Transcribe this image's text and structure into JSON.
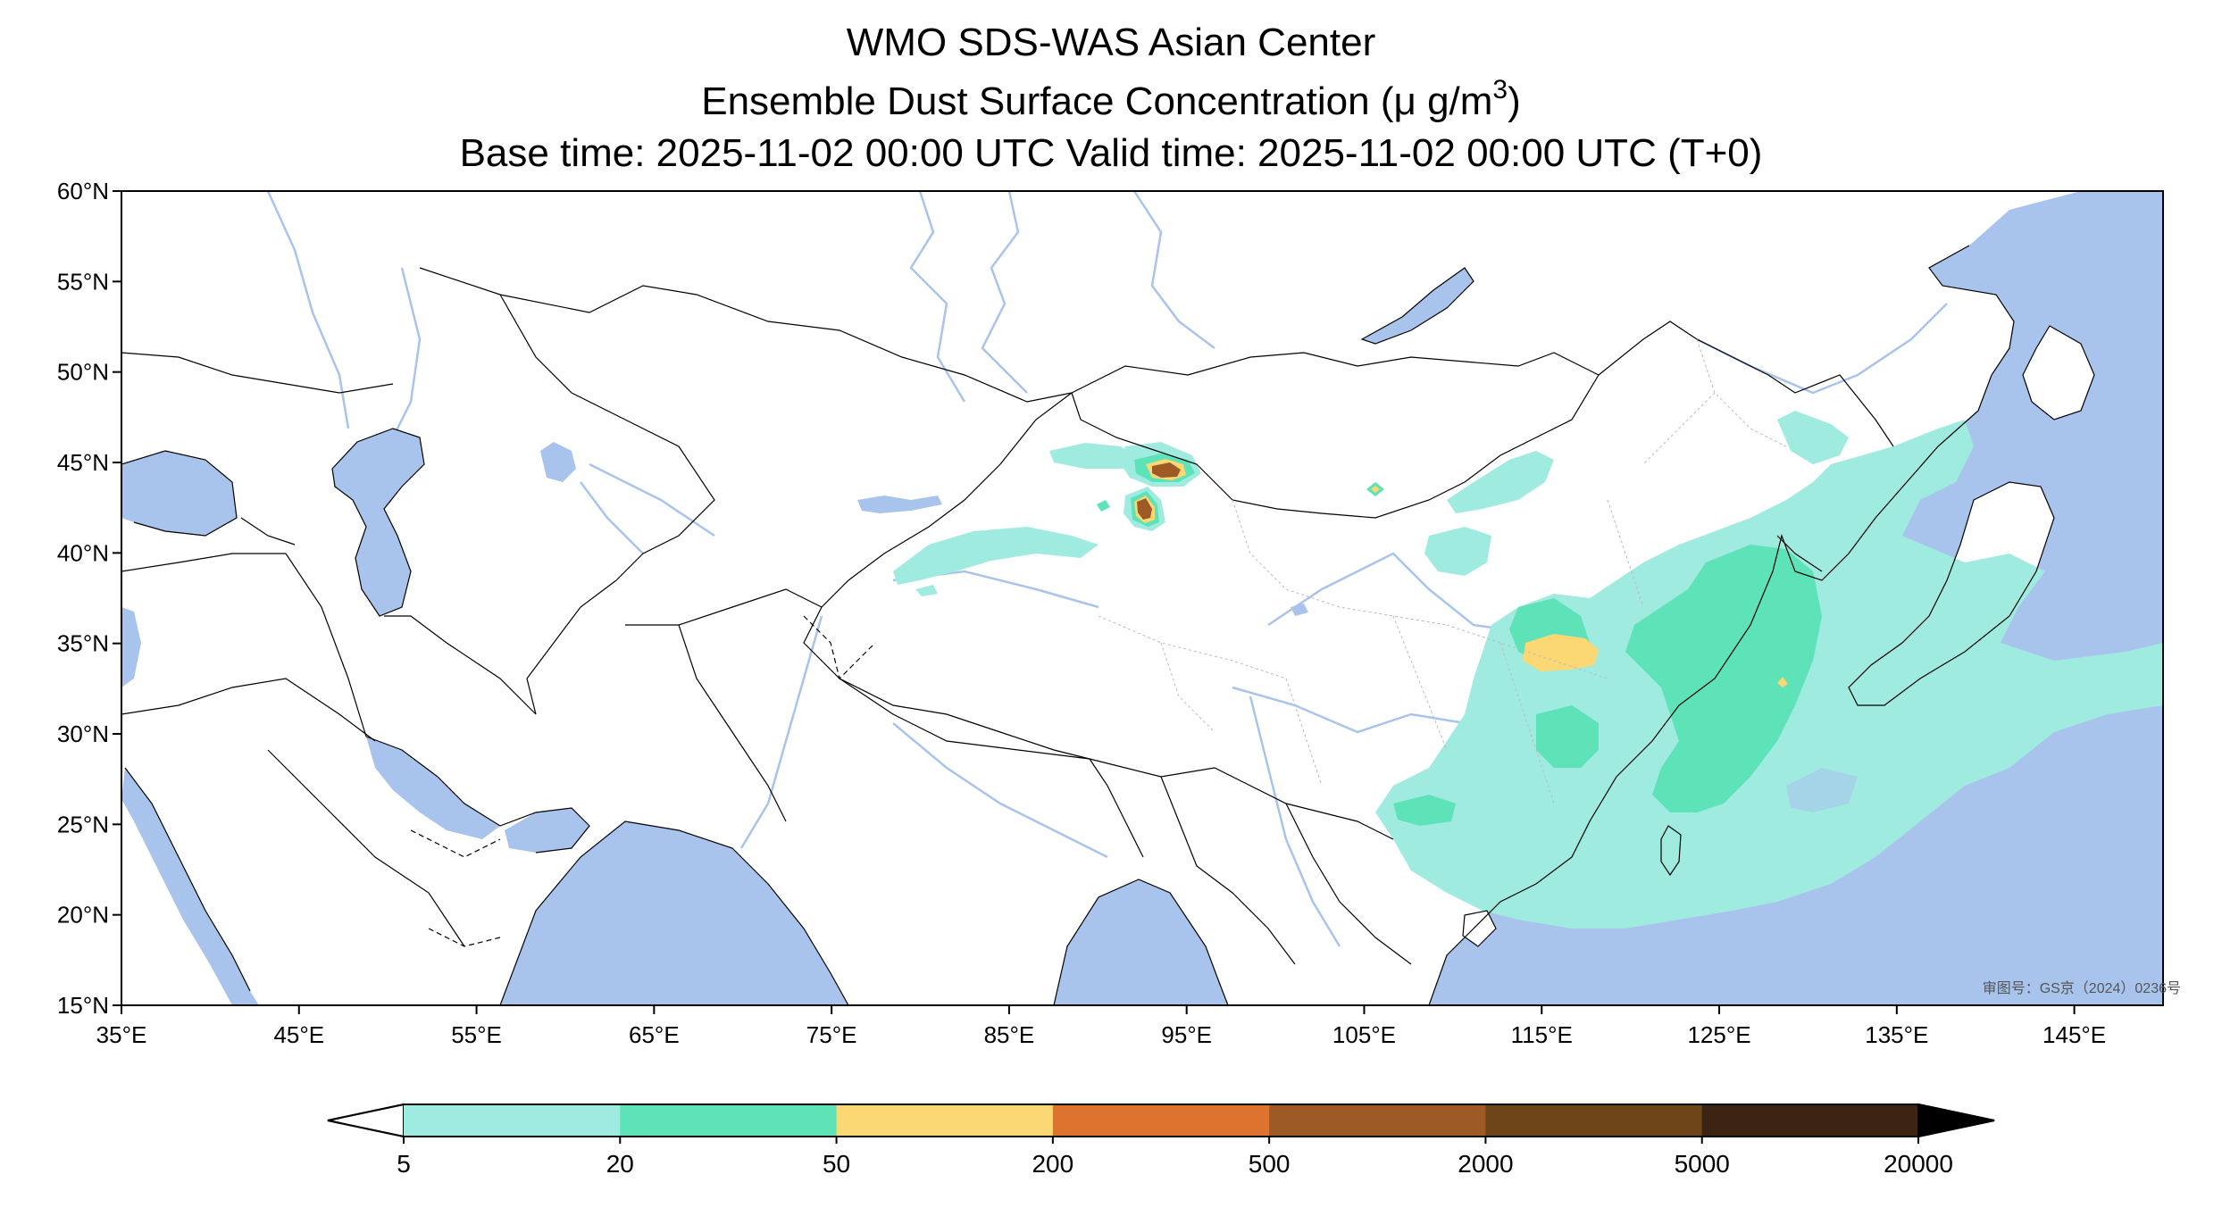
{
  "title": {
    "line1": "WMO SDS-WAS Asian Center",
    "line2_prefix": "Ensemble Dust Surface Concentration (μ g/m",
    "line2_sup": "3",
    "line2_suffix": ")",
    "line3": "Base time: 2025-11-02 00:00 UTC Valid time: 2025-11-02 00:00 UTC (T+0)"
  },
  "map": {
    "extent": {
      "lon_min": 35,
      "lon_max": 150,
      "lat_min": 15,
      "lat_max": 60
    },
    "lat_ticks": [
      {
        "value": 60,
        "label": "60°N"
      },
      {
        "value": 55,
        "label": "55°N"
      },
      {
        "value": 50,
        "label": "50°N"
      },
      {
        "value": 45,
        "label": "45°N"
      },
      {
        "value": 40,
        "label": "40°N"
      },
      {
        "value": 35,
        "label": "35°N"
      },
      {
        "value": 30,
        "label": "30°N"
      },
      {
        "value": 25,
        "label": "25°N"
      },
      {
        "value": 20,
        "label": "20°N"
      },
      {
        "value": 15,
        "label": "15°N"
      }
    ],
    "lon_ticks": [
      {
        "value": 35,
        "label": "35°E"
      },
      {
        "value": 45,
        "label": "45°E"
      },
      {
        "value": 55,
        "label": "55°E"
      },
      {
        "value": 65,
        "label": "65°E"
      },
      {
        "value": 75,
        "label": "75°E"
      },
      {
        "value": 85,
        "label": "85°E"
      },
      {
        "value": 95,
        "label": "95°E"
      },
      {
        "value": 105,
        "label": "105°E"
      },
      {
        "value": 115,
        "label": "115°E"
      },
      {
        "value": 125,
        "label": "125°E"
      },
      {
        "value": 135,
        "label": "135°E"
      },
      {
        "value": 145,
        "label": "145°E"
      }
    ],
    "approval_number": "审图号：GS京（2024）0236号",
    "colors": {
      "ocean": "#a9c4ec",
      "land": "#ffffff",
      "river": "#a9c4ec",
      "border": "#000000"
    }
  },
  "colorbar": {
    "labels": [
      "5",
      "20",
      "50",
      "200",
      "500",
      "2000",
      "5000",
      "20000"
    ],
    "colors": [
      "#a0ebe0",
      "#5ee2b8",
      "#fbd873",
      "#de7330",
      "#9e5a25",
      "#6e4419",
      "#3d2412"
    ],
    "extend": "both"
  }
}
